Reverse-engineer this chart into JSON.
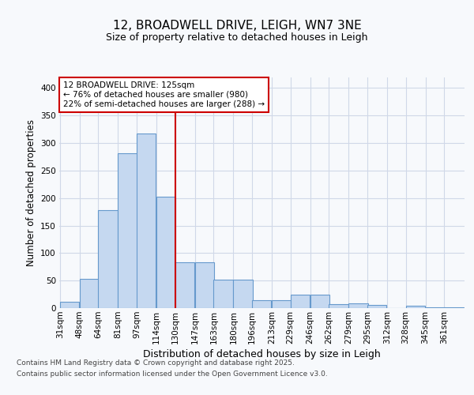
{
  "title_line1": "12, BROADWELL DRIVE, LEIGH, WN7 3NE",
  "title_line2": "Size of property relative to detached houses in Leigh",
  "xlabel": "Distribution of detached houses by size in Leigh",
  "ylabel": "Number of detached properties",
  "bin_labels": [
    "31sqm",
    "48sqm",
    "64sqm",
    "81sqm",
    "97sqm",
    "114sqm",
    "130sqm",
    "147sqm",
    "163sqm",
    "180sqm",
    "196sqm",
    "213sqm",
    "229sqm",
    "246sqm",
    "262sqm",
    "279sqm",
    "295sqm",
    "312sqm",
    "328sqm",
    "345sqm",
    "361sqm"
  ],
  "bar_values": [
    12,
    53,
    178,
    282,
    317,
    203,
    84,
    84,
    51,
    51,
    15,
    15,
    24,
    24,
    7,
    8,
    6,
    0,
    5,
    2,
    1
  ],
  "bar_color": "#c5d8f0",
  "bar_edge_color": "#6699cc",
  "vline_x_idx": 6,
  "vline_color": "#cc0000",
  "annotation_title": "12 BROADWELL DRIVE: 125sqm",
  "annotation_line2": "← 76% of detached houses are smaller (980)",
  "annotation_line3": "22% of semi-detached houses are larger (288) →",
  "annotation_box_facecolor": "white",
  "annotation_box_edgecolor": "#cc0000",
  "ylim": [
    0,
    420
  ],
  "yticks": [
    0,
    50,
    100,
    150,
    200,
    250,
    300,
    350,
    400
  ],
  "footer_line1": "Contains HM Land Registry data © Crown copyright and database right 2025.",
  "footer_line2": "Contains public sector information licensed under the Open Government Licence v3.0.",
  "bg_color": "#f7f9fc",
  "grid_color": "#d0d8e8",
  "title1_fontsize": 11,
  "title2_fontsize": 9,
  "ylabel_fontsize": 8.5,
  "xlabel_fontsize": 9,
  "tick_fontsize": 7.5,
  "footer_fontsize": 6.5
}
